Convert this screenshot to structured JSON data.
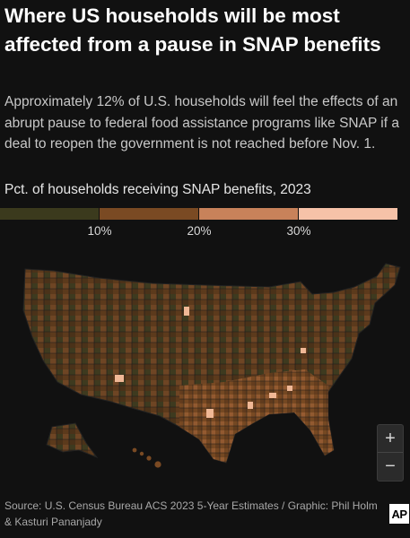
{
  "header": {
    "title": "Where US households will be most affected from a pause in SNAP benefits",
    "subtitle": "Approximately 12% of U.S. households will feel the effects of an abrupt pause to federal food assistance programs like SNAP if a deal to reopen the government is not reached before Nov. 1."
  },
  "legend": {
    "title": "Pct. of households receiving SNAP benefits, 2023",
    "ticks": [
      "10%",
      "20%",
      "30%"
    ],
    "colors": [
      "#3b3a1d",
      "#7a4a23",
      "#c8825a",
      "#f6c2a8"
    ]
  },
  "map": {
    "type": "county choropleth",
    "region": "United States (contiguous, Alaska, Hawaii)",
    "colors": {
      "background": "#111111",
      "borders": "#1a1a1a"
    }
  },
  "controls": {
    "zoom_in": "+",
    "zoom_out": "−"
  },
  "footer": {
    "source": "Source: U.S. Census Bureau ACS 2023 5-Year Estimates / Graphic: Phil Holm & Kasturi Pananjady",
    "logo": "AP"
  }
}
